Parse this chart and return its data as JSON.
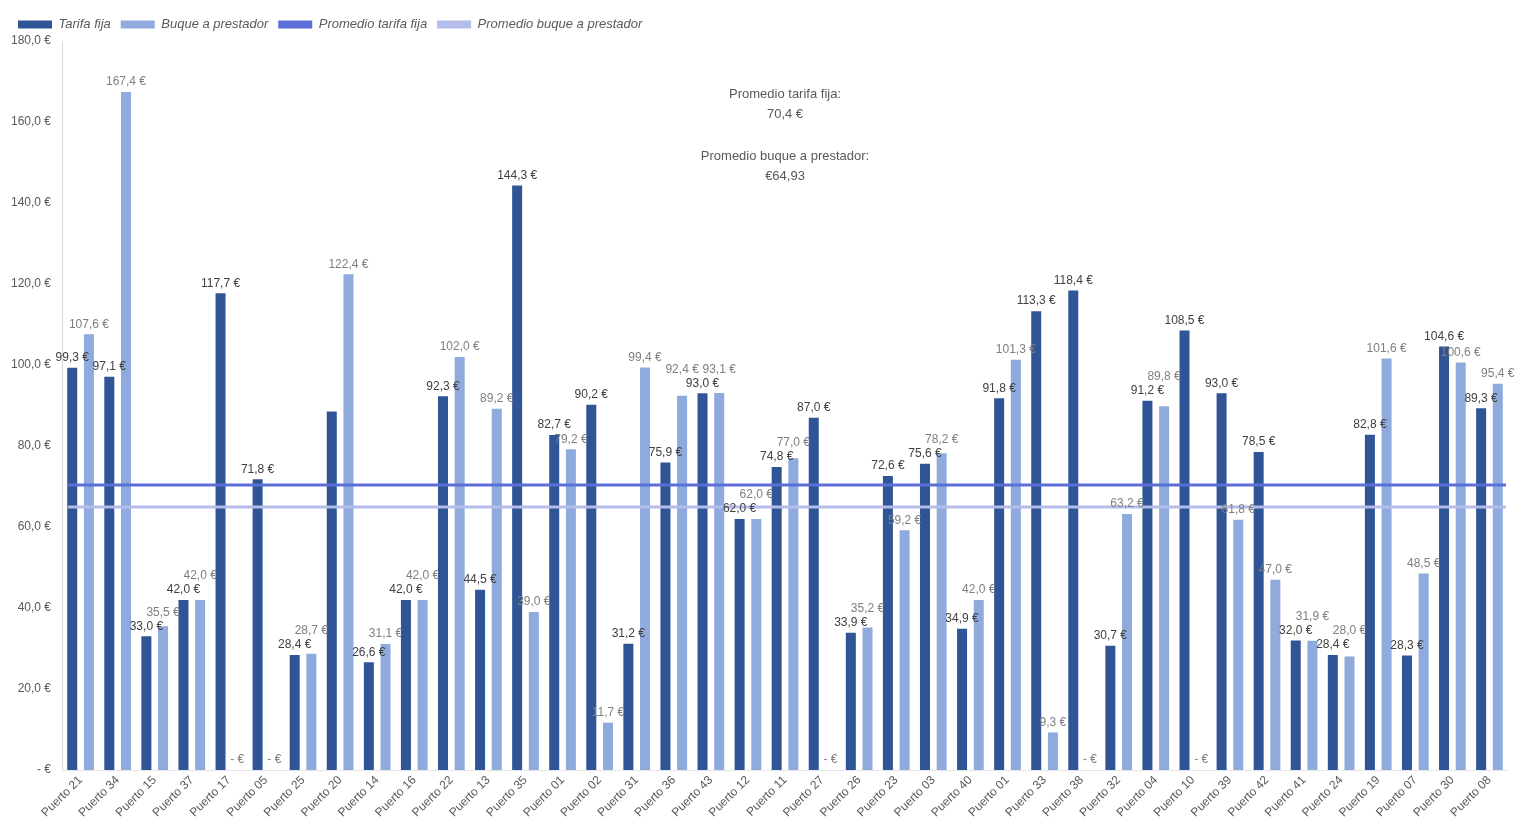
{
  "chart_data": {
    "type": "bar",
    "categories": [
      "Puerto 21",
      "Puerto 34",
      "Puerto 15",
      "Puerto 37",
      "Puerto 17",
      "Puerto 05",
      "Puerto 25",
      "Puerto 20",
      "Puerto 14",
      "Puerto 16",
      "Puerto 22",
      "Puerto 13",
      "Puerto 35",
      "Puerto 01",
      "Puerto 02",
      "Puerto 31",
      "Puerto 36",
      "Puerto 43",
      "Puerto 12",
      "Puerto 11",
      "Puerto 27",
      "Puerto 26",
      "Puerto 23",
      "Puerto 03",
      "Puerto 40",
      "Puerto 01",
      "Puerto 33",
      "Puerto 38",
      "Puerto 32",
      "Puerto 04",
      "Puerto 10",
      "Puerto 39",
      "Puerto 42",
      "Puerto 41",
      "Puerto 24",
      "Puerto 19",
      "Puerto 07",
      "Puerto 30",
      "Puerto 08"
    ],
    "series": [
      {
        "name": "Tarifa fija",
        "color": "#2f5597",
        "values": [
          99.3,
          97.1,
          33.0,
          42.0,
          117.7,
          71.8,
          28.4,
          88.5,
          26.6,
          42.0,
          92.3,
          44.5,
          144.3,
          82.7,
          90.2,
          31.2,
          75.9,
          93.0,
          62.0,
          74.8,
          87.0,
          33.9,
          72.6,
          75.6,
          34.9,
          91.8,
          113.3,
          118.4,
          30.7,
          91.2,
          108.5,
          93.0,
          78.5,
          32.0,
          28.4,
          82.8,
          28.3,
          104.6,
          89.3
        ],
        "value_labels": [
          "99,3 €",
          "97,1 €",
          "33,0 €",
          "42,0 €",
          "117,7 €",
          "71,8 €",
          "28,4 €",
          null,
          "26,6 €",
          "42,0 €",
          "92,3 €",
          "44,5 €",
          "144,3 €",
          "82,7 €",
          "90,2 €",
          "31,2 €",
          "75,9 €",
          "93,0 €",
          "62,0 €",
          "74,8 €",
          "87,0 €",
          "33,9 €",
          "72,6 €",
          "75,6 €",
          "34,9 €",
          "91,8 €",
          "113,3 €",
          "118,4 €",
          "30,7 €",
          "91,2 €",
          "108,5 €",
          "93,0 €",
          "78,5 €",
          "32,0 €",
          "28,4 €",
          "82,8 €",
          "28,3 €",
          "104,6 €",
          "89,3 €"
        ]
      },
      {
        "name": "Buque a prestador",
        "color": "#8faadc",
        "values": [
          107.6,
          167.4,
          35.5,
          42.0,
          0,
          0,
          28.7,
          122.4,
          31.1,
          42.0,
          102.0,
          89.2,
          39.0,
          79.2,
          11.7,
          99.4,
          92.4,
          93.1,
          62.0,
          77.0,
          0,
          35.2,
          59.2,
          78.2,
          42.0,
          101.3,
          9.3,
          0,
          63.2,
          89.8,
          0,
          61.8,
          47.0,
          31.9,
          28.0,
          101.6,
          48.5,
          100.6,
          95.4
        ],
        "value_labels": [
          "107,6 €",
          "167,4 €",
          "35,5 €",
          "42,0 €",
          "- €",
          "- €",
          "28,7 €",
          "122,4 €",
          "31,1 €",
          "42,0 €",
          "102,0 €",
          "89,2 €",
          "39,0 €",
          "79,2 €",
          "11,7 €",
          "99,4 €",
          "92,4 €",
          "93,1 €",
          "62,0 €",
          "77,0 €",
          "- €",
          "35,2 €",
          "59,2 €",
          "78,2 €",
          "42,0 €",
          "101,3 €",
          "9,3 €",
          "- €",
          "63,2 €",
          "89,8 €",
          "- €",
          "61,8 €",
          "47,0 €",
          "31,9 €",
          "28,0 €",
          "101,6 €",
          "48,5 €",
          "100,6 €",
          "95,4 €"
        ]
      }
    ],
    "ref_lines": [
      {
        "axis": "y",
        "value": 70.4,
        "label": "Promedio tarifa fija",
        "color": "#5b6fd6"
      },
      {
        "axis": "y",
        "value": 64.93,
        "label": "Promedio buque a prestador",
        "color": "#b4bde9"
      }
    ],
    "annotations": [
      "Promedio tarifa fija: 70,4 €",
      "Promedio buque a prestador: €64,93"
    ],
    "ylim": [
      0,
      180
    ],
    "yticks": [
      {
        "value": 0,
        "label": "- €"
      },
      {
        "value": 20,
        "label": "20,0 €"
      },
      {
        "value": 40,
        "label": "40,0 €"
      },
      {
        "value": 60,
        "label": "60,0 €"
      },
      {
        "value": 80,
        "label": "80,0 €"
      },
      {
        "value": 100,
        "label": "100,0 €"
      },
      {
        "value": 120,
        "label": "120,0 €"
      },
      {
        "value": 140,
        "label": "140,0 €"
      },
      {
        "value": 160,
        "label": "160,0 €"
      },
      {
        "value": 180,
        "label": "180,0 €"
      }
    ],
    "grid": false,
    "legend": "top left"
  }
}
